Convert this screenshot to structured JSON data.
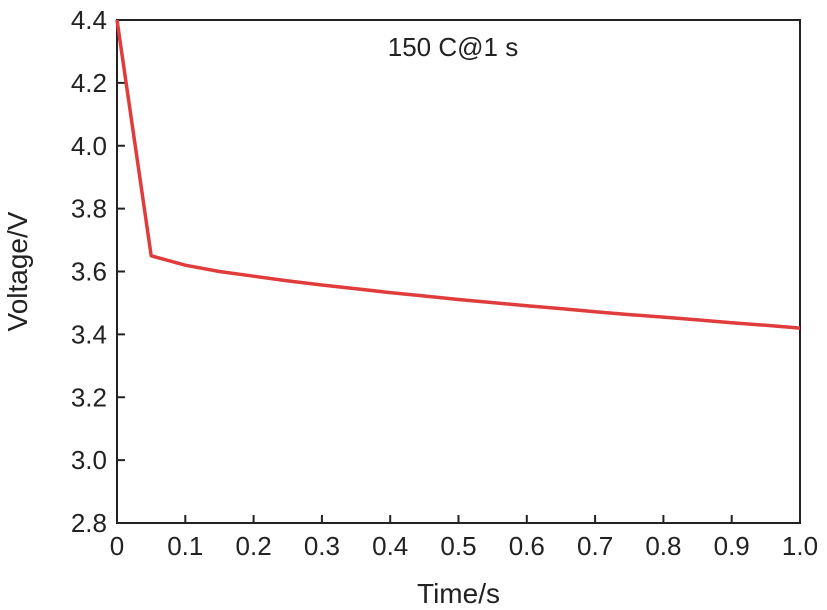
{
  "chart_data": {
    "type": "line",
    "title": "",
    "annotation": "150 C@1 s",
    "xlabel": "Time/s",
    "ylabel": "Voltage/V",
    "xlim": [
      0,
      1.0
    ],
    "ylim": [
      2.8,
      4.4
    ],
    "x_ticks": [
      "0",
      "0.1",
      "0.2",
      "0.3",
      "0.4",
      "0.5",
      "0.6",
      "0.7",
      "0.8",
      "0.9",
      "1.0"
    ],
    "y_ticks": [
      "2.8",
      "3.0",
      "3.2",
      "3.4",
      "3.6",
      "3.8",
      "4.0",
      "4.2",
      "4.4"
    ],
    "grid": false,
    "legend": "none",
    "series": [
      {
        "color": "#e03c3c",
        "x": [
          0,
          0.05,
          0.1,
          0.15,
          0.2,
          0.25,
          0.3,
          0.35,
          0.4,
          0.45,
          0.5,
          0.55,
          0.6,
          0.65,
          0.7,
          0.75,
          0.8,
          0.85,
          0.9,
          0.95,
          1.0
        ],
        "y": [
          4.4,
          3.65,
          3.62,
          3.6,
          3.585,
          3.57,
          3.557,
          3.545,
          3.533,
          3.522,
          3.511,
          3.501,
          3.491,
          3.482,
          3.472,
          3.463,
          3.455,
          3.446,
          3.437,
          3.429,
          3.42
        ]
      }
    ]
  }
}
